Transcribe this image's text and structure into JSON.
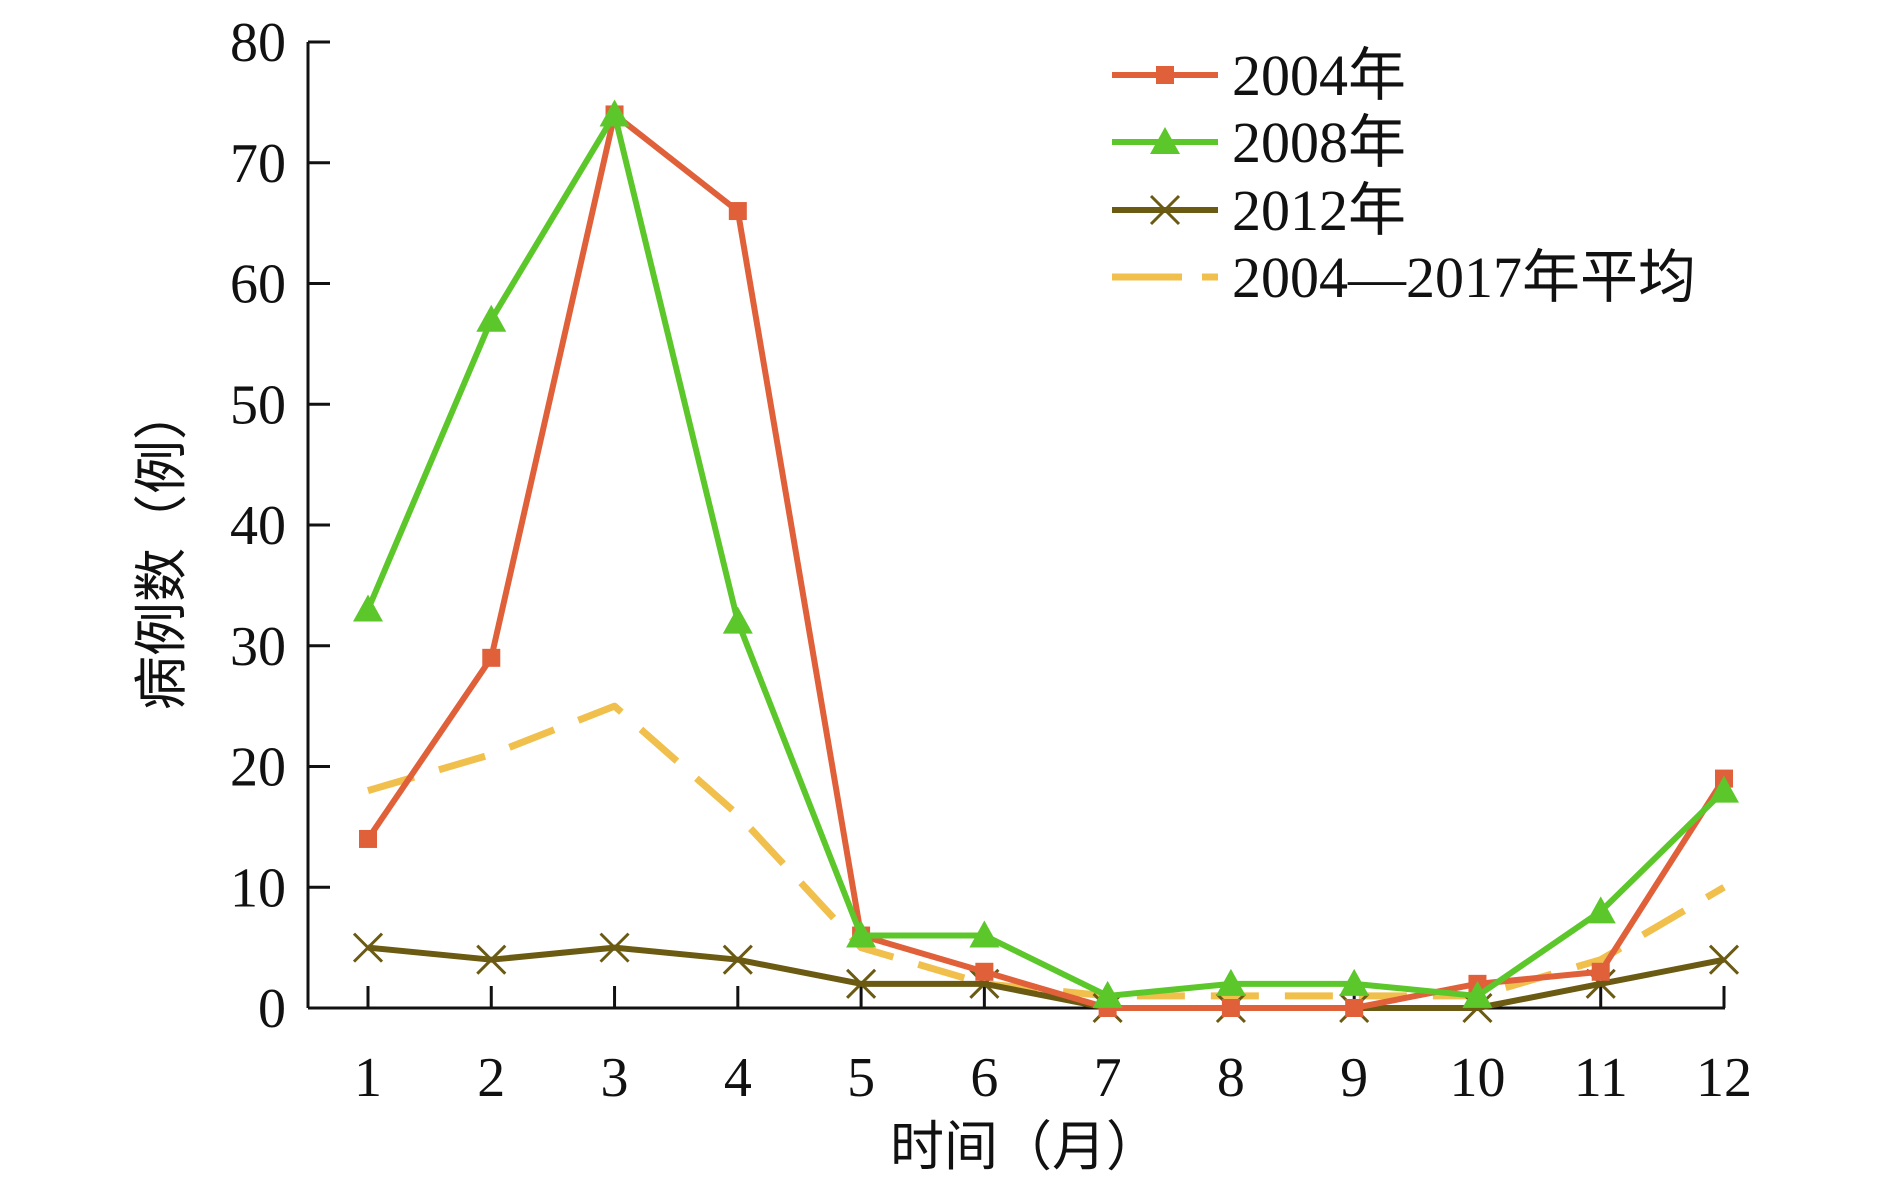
{
  "chart_data": {
    "type": "line",
    "title": "",
    "xlabel": "时间（月）",
    "ylabel": "病例数（例）",
    "categories": [
      "1",
      "2",
      "3",
      "4",
      "5",
      "6",
      "7",
      "8",
      "9",
      "10",
      "11",
      "12"
    ],
    "ylim": [
      0,
      80
    ],
    "yticks": [
      "0",
      "10",
      "20",
      "30",
      "40",
      "50",
      "60",
      "70",
      "80"
    ],
    "grid": false,
    "legend_position": "top-right",
    "series": [
      {
        "name": "2004年",
        "color": "#e0603a",
        "marker": "square",
        "dash": "solid",
        "values": [
          14,
          29,
          74,
          66,
          6,
          3,
          0,
          0,
          0,
          2,
          3,
          19
        ]
      },
      {
        "name": "2008年",
        "color": "#5cc72a",
        "marker": "triangle",
        "dash": "solid",
        "values": [
          33,
          57,
          74,
          32,
          6,
          6,
          1,
          2,
          2,
          1,
          8,
          18
        ]
      },
      {
        "name": "2012年",
        "color": "#6b5a12",
        "marker": "x",
        "dash": "solid",
        "values": [
          5,
          4,
          5,
          4,
          2,
          2,
          0,
          0,
          0,
          0,
          2,
          4
        ]
      },
      {
        "name": "2004—2017年平均",
        "color": "#f0bf4c",
        "marker": "none",
        "dash": "dashed",
        "values": [
          18,
          21,
          25,
          16,
          5,
          2,
          1,
          1,
          1,
          1,
          4,
          10
        ]
      }
    ]
  }
}
